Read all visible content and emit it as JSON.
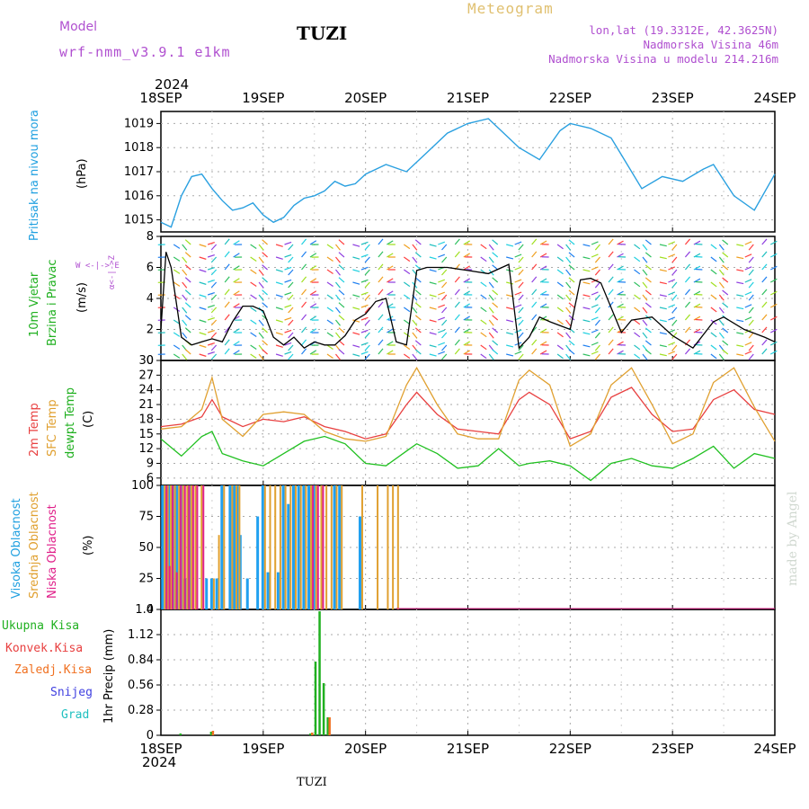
{
  "header": {
    "model_label": "Model",
    "model_name": "wrf-nmm_v3.9.1  e1km",
    "station": "TUZI",
    "product": "Meteogram",
    "lonlat": "lon,lat (19.3312E, 42.3625N)",
    "altitude": "Nadmorska Visina 46m",
    "model_altitude": "Nadmorska Visina u modelu 214.216m",
    "year_top": "2024",
    "year_bottom": "2024",
    "footer_station": "TUZI",
    "watermark": "made by Angel"
  },
  "colors": {
    "pressure": "#2aa0e0",
    "wind_speed": "#000000",
    "gust": "#ff3030",
    "temp2m": "#e84040",
    "sfc_temp": "#e0a030",
    "dewpoint": "#20c020",
    "cloud_high": "#20a0f0",
    "cloud_mid": "#e0a030",
    "cloud_low": "#e0208a",
    "precip_total": "#20b020",
    "precip_conv": "#e84040",
    "precip_strat": "#f07020",
    "snow": "#4040e0",
    "hail": "#20c0c0",
    "grid": "#aaaaaa"
  },
  "x_axis": {
    "day_labels": [
      "18SEP",
      "19SEP",
      "20SEP",
      "21SEP",
      "22SEP",
      "23SEP",
      "24SEP"
    ]
  },
  "panels": {
    "pressure": {
      "ylabel_left": "Pritisak na nivou mora",
      "unit": "(hPa)"
    },
    "wind": {
      "ylabel_left1": "10m Vjetar",
      "ylabel_left2": "Brzina i Pravac",
      "unit": "(m/s)",
      "compass": "W <-|-> E",
      "compass_v": "α<-|->Z"
    },
    "temp": {
      "ylabel_1": "2m Temp",
      "ylabel_2": "SFC Temp",
      "ylabel_3": "dewpt Temp",
      "unit": "(C)"
    },
    "cloud": {
      "ylabel_1": "Visoka Oblacnost",
      "ylabel_2": "Srednja Oblacnost",
      "ylabel_3": "Niska Oblacnost",
      "unit": "(%)"
    },
    "precip": {
      "legend": [
        "Ukupna Kisa",
        "Konvek.Kisa",
        "Zaledj.Kisa",
        "Snijeg",
        "Grad"
      ],
      "unit": "1hr Precip (mm)"
    }
  },
  "chart_data": [
    {
      "type": "line",
      "title": "",
      "ylabel": "Pritisak na nivou mora (hPa)",
      "ylim": [
        1014.5,
        1019.5
      ],
      "yticks": [
        1015,
        1016,
        1017,
        1018,
        1019
      ],
      "x_days": [
        0,
        0.1,
        0.2,
        0.3,
        0.4,
        0.5,
        0.6,
        0.7,
        0.8,
        0.9,
        1.0,
        1.1,
        1.2,
        1.3,
        1.4,
        1.5,
        1.6,
        1.7,
        1.8,
        1.9,
        2.0,
        2.2,
        2.4,
        2.6,
        2.8,
        3.0,
        3.2,
        3.3,
        3.5,
        3.7,
        3.9,
        4.0,
        4.2,
        4.4,
        4.5,
        4.7,
        4.9,
        5.1,
        5.3,
        5.4,
        5.6,
        5.8,
        6.0
      ],
      "series": [
        {
          "values": [
            1014.9,
            1014.7,
            1016.0,
            1016.8,
            1016.9,
            1016.3,
            1015.8,
            1015.4,
            1015.5,
            1015.7,
            1015.2,
            1014.9,
            1015.1,
            1015.6,
            1015.9,
            1016.0,
            1016.2,
            1016.6,
            1016.4,
            1016.5,
            1016.9,
            1017.3,
            1017.0,
            1017.8,
            1018.6,
            1019.0,
            1019.2,
            1018.8,
            1018.0,
            1017.5,
            1018.7,
            1019.0,
            1018.8,
            1018.4,
            1017.7,
            1016.3,
            1016.8,
            1016.6,
            1017.1,
            1017.3,
            1016.0,
            1015.4,
            1016.9
          ]
        }
      ]
    },
    {
      "type": "line",
      "title": "",
      "ylabel": "10m Vjetar Brzina i Pravac (m/s)",
      "ylim": [
        0,
        8
      ],
      "yticks": [
        0,
        2,
        4,
        6,
        8
      ],
      "x_days": [
        0,
        0.05,
        0.1,
        0.2,
        0.3,
        0.4,
        0.5,
        0.6,
        0.7,
        0.8,
        0.9,
        1.0,
        1.1,
        1.2,
        1.3,
        1.4,
        1.5,
        1.6,
        1.7,
        1.8,
        1.9,
        2.0,
        2.1,
        2.2,
        2.3,
        2.4,
        2.5,
        2.6,
        2.7,
        2.8,
        3.0,
        3.2,
        3.4,
        3.5,
        3.6,
        3.7,
        3.8,
        4.0,
        4.1,
        4.2,
        4.3,
        4.5,
        4.6,
        4.8,
        5.0,
        5.2,
        5.4,
        5.5,
        5.7,
        5.9,
        6.0
      ],
      "series": [
        {
          "values": [
            2.0,
            7.0,
            6.0,
            1.5,
            1.0,
            1.2,
            1.4,
            1.2,
            2.5,
            3.5,
            3.5,
            3.2,
            1.5,
            1.0,
            1.5,
            0.8,
            1.2,
            1.0,
            1.0,
            1.6,
            2.6,
            3.0,
            3.8,
            4.0,
            1.2,
            1.0,
            5.8,
            6.0,
            6.0,
            6.0,
            5.8,
            5.6,
            6.2,
            0.8,
            1.5,
            2.8,
            2.5,
            2.0,
            5.2,
            5.3,
            5.0,
            1.8,
            2.6,
            2.8,
            1.6,
            0.8,
            2.5,
            2.8,
            2.0,
            1.5,
            1.2
          ]
        }
      ]
    },
    {
      "type": "line",
      "title": "",
      "ylabel": "Temp (C)",
      "ylim": [
        4.5,
        30
      ],
      "yticks": [
        6,
        9,
        12,
        15,
        18,
        21,
        24,
        27,
        30
      ],
      "x_days": [
        0,
        0.2,
        0.4,
        0.5,
        0.6,
        0.8,
        1.0,
        1.2,
        1.4,
        1.6,
        1.8,
        2.0,
        2.2,
        2.4,
        2.5,
        2.7,
        2.9,
        3.1,
        3.3,
        3.5,
        3.6,
        3.8,
        4.0,
        4.2,
        4.4,
        4.6,
        4.8,
        5.0,
        5.2,
        5.4,
        5.6,
        5.8,
        6.0
      ],
      "series": [
        {
          "name": "2m Temp",
          "values": [
            16.5,
            17.0,
            18.5,
            22,
            18.5,
            16.5,
            18.0,
            17.5,
            18.5,
            16.5,
            15.5,
            14.0,
            15.0,
            21.0,
            23.5,
            19.0,
            16.0,
            15.5,
            15.0,
            22.0,
            23.5,
            21.0,
            14.0,
            15.5,
            22.5,
            24.5,
            19.0,
            15.5,
            16.0,
            22.0,
            24.0,
            20.0,
            19.0
          ]
        },
        {
          "name": "SFC Temp",
          "values": [
            16.0,
            16.5,
            20.0,
            26.5,
            18.0,
            14.5,
            19.0,
            19.5,
            19.0,
            15.5,
            14.0,
            13.5,
            14.5,
            25.0,
            28.5,
            21.0,
            15.0,
            14.0,
            14.0,
            26.0,
            28.0,
            25.0,
            12.5,
            15.0,
            25.0,
            28.5,
            21.0,
            13.0,
            15.0,
            25.5,
            28.5,
            20.5,
            13.5
          ]
        },
        {
          "name": "dewpt Temp",
          "values": [
            14.0,
            10.5,
            14.5,
            15.5,
            11.0,
            9.5,
            8.5,
            11.0,
            13.5,
            14.5,
            13.0,
            9.0,
            8.5,
            11.5,
            13.0,
            11.0,
            8.0,
            8.5,
            12.0,
            8.5,
            9.0,
            9.5,
            8.5,
            5.5,
            9.0,
            10.0,
            8.5,
            8.0,
            10.0,
            12.5,
            8.0,
            11.0,
            10.0
          ]
        }
      ]
    },
    {
      "type": "bar",
      "title": "",
      "ylabel": "Oblacnost (%)",
      "ylim": [
        0,
        100
      ],
      "yticks": [
        0,
        25,
        50,
        75,
        100
      ],
      "x_days": [
        0.02,
        0.05,
        0.08,
        0.12,
        0.16,
        0.2,
        0.24,
        0.28,
        0.32,
        0.38,
        0.45,
        0.5,
        0.55,
        0.6,
        0.68,
        0.72,
        0.75,
        0.78,
        0.85,
        0.95,
        1.0,
        1.05,
        1.1,
        1.15,
        1.2,
        1.25,
        1.3,
        1.35,
        1.4,
        1.45,
        1.5,
        1.55,
        1.6,
        1.65,
        1.7,
        1.75,
        1.85,
        1.95,
        2.1,
        2.2,
        2.25,
        2.3
      ],
      "series": [
        {
          "name": "Visoka Oblacnost",
          "values": [
            100,
            100,
            100,
            100,
            100,
            100,
            25,
            100,
            0,
            0,
            25,
            25,
            25,
            100,
            100,
            100,
            100,
            60,
            25,
            75,
            100,
            30,
            0,
            30,
            100,
            85,
            100,
            100,
            100,
            100,
            100,
            0,
            0,
            0,
            100,
            100,
            0,
            75,
            0,
            0,
            0,
            0
          ]
        },
        {
          "name": "Srednja Oblacnost",
          "values": [
            100,
            100,
            100,
            100,
            100,
            100,
            100,
            100,
            100,
            100,
            0,
            25,
            60,
            100,
            100,
            100,
            100,
            0,
            0,
            0,
            100,
            100,
            100,
            100,
            100,
            100,
            100,
            100,
            100,
            100,
            100,
            100,
            100,
            100,
            100,
            100,
            0,
            100,
            100,
            100,
            100,
            100
          ]
        },
        {
          "name": "Niska Oblacnost",
          "values": [
            100,
            35,
            100,
            30,
            100,
            100,
            100,
            100,
            100,
            100,
            0,
            0,
            0,
            0,
            0,
            0,
            0,
            0,
            0,
            0,
            0,
            0,
            0,
            0,
            0,
            0,
            0,
            0,
            0,
            100,
            100,
            100,
            0,
            0,
            0,
            0,
            0,
            0,
            0,
            0,
            0,
            0
          ]
        }
      ]
    },
    {
      "type": "bar",
      "title": "",
      "ylabel": "1hr Precip (mm)",
      "ylim": [
        0,
        1.4
      ],
      "yticks": [
        0,
        0.28,
        0.56,
        0.84,
        1.12,
        1.4
      ],
      "x_days": [
        0.18,
        0.48,
        1.45,
        1.5,
        1.54,
        1.58,
        1.62
      ],
      "series": [
        {
          "name": "Ukupna Kisa",
          "values": [
            0.02,
            0.04,
            0.02,
            0.82,
            1.38,
            0.58,
            0.2
          ]
        },
        {
          "name": "Zaledj.Kisa",
          "values": [
            0.0,
            0.05,
            0.03,
            0.0,
            0.0,
            0.0,
            0.2
          ]
        }
      ]
    }
  ]
}
